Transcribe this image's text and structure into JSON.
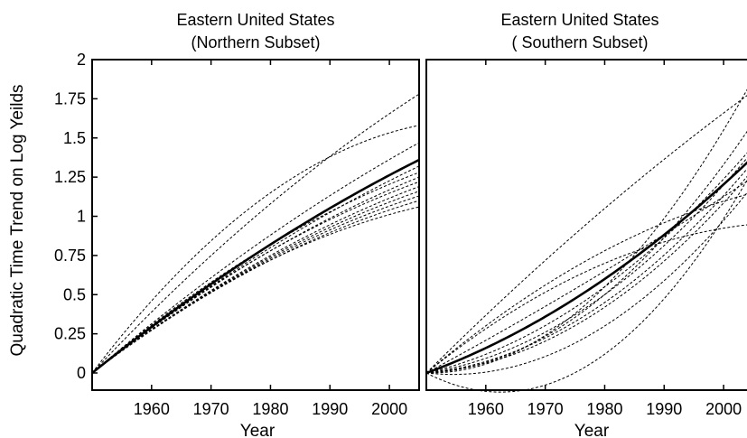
{
  "chart_data": [
    {
      "type": "line",
      "title_lines": [
        "Eastern United States",
        "(Northern Subset)"
      ],
      "xlabel": "Year",
      "ylabel": "Quadratic Time Trend on Log Yeilds",
      "xlim": [
        1950,
        2005
      ],
      "ylim": [
        -0.1,
        2
      ],
      "xticks": [
        1960,
        1970,
        1980,
        1990,
        2000
      ],
      "yticks": [
        0,
        0.25,
        0.5,
        0.75,
        1,
        1.25,
        1.5,
        1.75,
        2
      ],
      "ytick_labels": [
        "0",
        "0.25",
        "0.5",
        "0.75",
        "1",
        "1.25",
        "1.5",
        "1.75",
        "2"
      ],
      "mean_series": {
        "style": "solid",
        "y_at": {
          "1950": 0,
          "1980": 0.82,
          "2005": 1.36
        }
      },
      "series": [
        {
          "style": "dashed",
          "y_at": {
            "1950": 0,
            "1980": 1.08,
            "2005": 1.78
          }
        },
        {
          "style": "dashed",
          "y_at": {
            "1950": 0,
            "1980": 1.15,
            "2005": 1.58
          }
        },
        {
          "style": "dashed",
          "y_at": {
            "1950": 0,
            "1980": 0.88,
            "2005": 1.47
          }
        },
        {
          "style": "dashed",
          "y_at": {
            "1950": 0,
            "1980": 0.8,
            "2005": 1.32
          }
        },
        {
          "style": "dashed",
          "y_at": {
            "1950": 0,
            "1980": 0.82,
            "2005": 1.28
          }
        },
        {
          "style": "dashed",
          "y_at": {
            "1950": 0,
            "1980": 0.78,
            "2005": 1.25
          }
        },
        {
          "style": "dashed",
          "y_at": {
            "1950": 0,
            "1980": 0.78,
            "2005": 1.22
          }
        },
        {
          "style": "dashed",
          "y_at": {
            "1950": 0,
            "1980": 0.75,
            "2005": 1.19
          }
        },
        {
          "style": "dashed",
          "y_at": {
            "1950": 0,
            "1980": 0.74,
            "2005": 1.16
          }
        },
        {
          "style": "dashed",
          "y_at": {
            "1950": 0,
            "1980": 0.73,
            "2005": 1.13
          }
        },
        {
          "style": "dashed",
          "y_at": {
            "1950": 0,
            "1980": 0.72,
            "2005": 1.1
          }
        },
        {
          "style": "dashed",
          "y_at": {
            "1950": 0,
            "1980": 0.72,
            "2005": 1.06
          }
        }
      ]
    },
    {
      "type": "line",
      "title_lines": [
        "Eastern United States",
        "( Southern Subset)"
      ],
      "xlabel": "Year",
      "ylabel": "",
      "xlim": [
        1950,
        2005
      ],
      "ylim": [
        -0.1,
        2
      ],
      "xticks": [
        1960,
        1970,
        1980,
        1990,
        2000
      ],
      "mean_series": {
        "style": "solid",
        "y_at": {
          "1950": 0,
          "1980": 0.6,
          "2005": 1.38
        }
      },
      "series": [
        {
          "style": "dashed",
          "y_at": {
            "1950": 0,
            "1980": 1.05,
            "2005": 1.8
          }
        },
        {
          "style": "dashed",
          "y_at": {
            "1950": 0,
            "1980": 0.55,
            "2005": 1.88
          }
        },
        {
          "style": "dashed",
          "y_at": {
            "1950": 0,
            "1980": 0.5,
            "2005": 1.6
          }
        },
        {
          "style": "dashed",
          "y_at": {
            "1950": 0,
            "1980": 0.55,
            "2005": 1.45
          }
        },
        {
          "style": "dashed",
          "y_at": {
            "1950": 0,
            "1980": 0.5,
            "2005": 1.42
          }
        },
        {
          "style": "dashed",
          "y_at": {
            "1950": 0,
            "1980": 0.45,
            "2005": 1.35
          }
        },
        {
          "style": "dashed",
          "y_at": {
            "1950": 0,
            "1980": 0.42,
            "2005": 1.3
          }
        },
        {
          "style": "dashed",
          "y_at": {
            "1950": 0,
            "1980": 0.65,
            "2005": 1.25
          }
        },
        {
          "style": "dashed",
          "y_at": {
            "1950": 0,
            "1980": 0.78,
            "2005": 1.15
          }
        },
        {
          "style": "dashed",
          "y_at": {
            "1950": 0,
            "1980": 0.3,
            "2005": 1.2
          }
        },
        {
          "style": "dashed",
          "y_at": {
            "1950": 0,
            "1980": 0.12,
            "2005": 1.3
          }
        },
        {
          "style": "dashed",
          "y_at": {
            "1950": 0,
            "1980": 0.7,
            "2005": 0.95
          }
        }
      ]
    }
  ]
}
